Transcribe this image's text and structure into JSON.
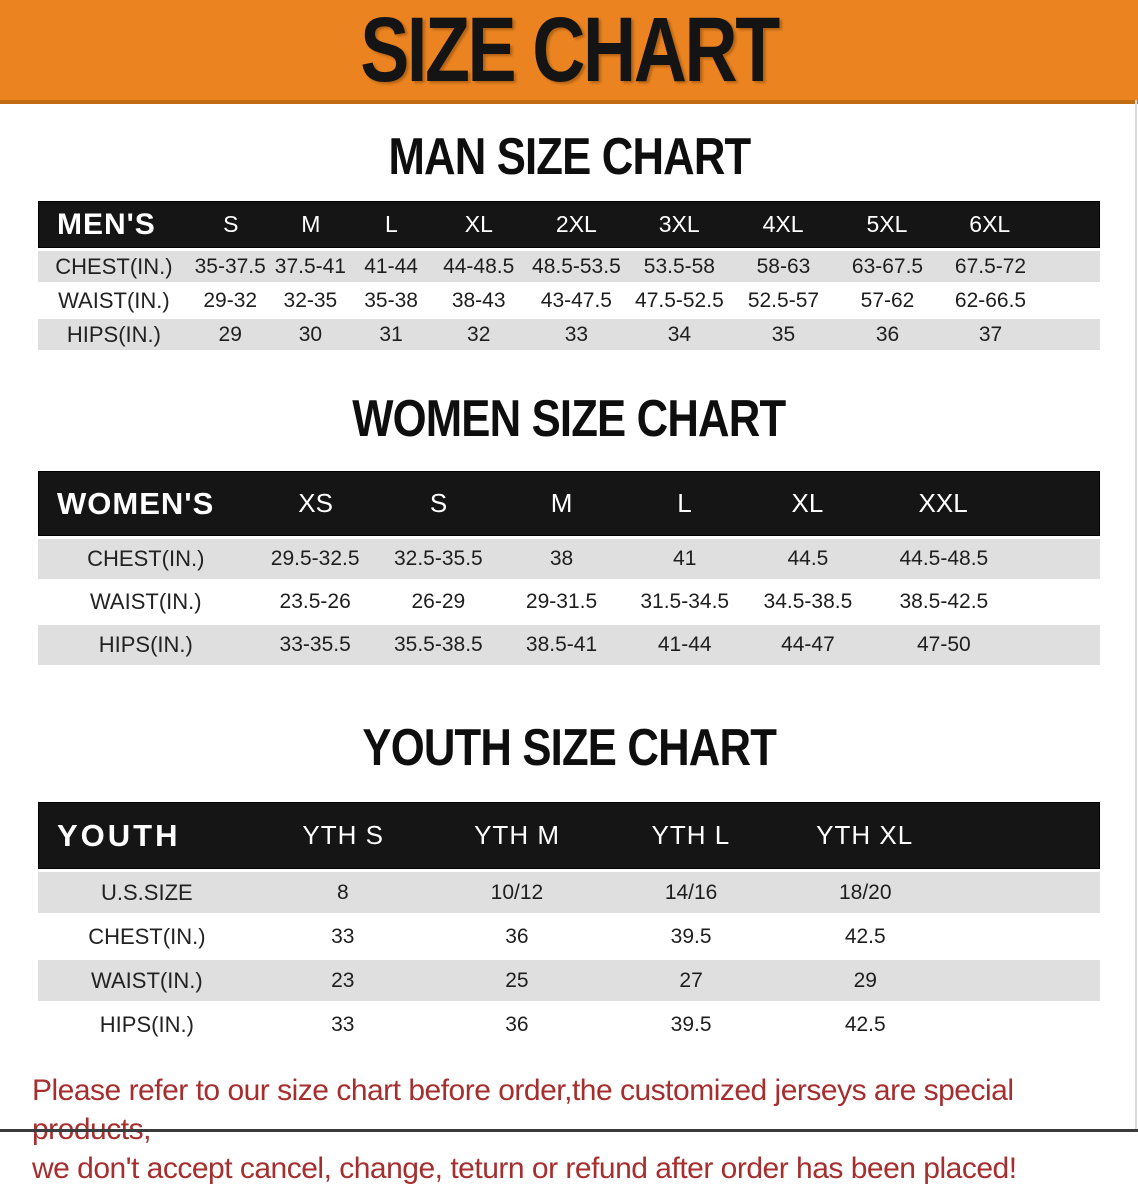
{
  "banner": {
    "title": "SIZE CHART"
  },
  "colors": {
    "banner_orange": "#EB8420",
    "table_header_black": "#151515",
    "row_gray": "#DFDFDF",
    "disclaimer_red": "#A62E2E"
  },
  "sections": {
    "men": {
      "heading": "MAN SIZE CHART",
      "table": {
        "header_label": "MEN'S",
        "columns": [
          "S",
          "M",
          "L",
          "XL",
          "2XL",
          "3XL",
          "4XL",
          "5XL",
          "6XL"
        ],
        "rows": [
          {
            "label": "CHEST(IN.)",
            "values": [
              "35-37.5",
              "37.5-41",
              "41-44",
              "44-48.5",
              "48.5-53.5",
              "53.5-58",
              "58-63",
              "63-67.5",
              "67.5-72"
            ]
          },
          {
            "label": "WAIST(IN.)",
            "values": [
              "29-32",
              "32-35",
              "35-38",
              "38-43",
              "43-47.5",
              "47.5-52.5",
              "52.5-57",
              "57-62",
              "62-66.5"
            ]
          },
          {
            "label": "HIPS(IN.)",
            "values": [
              "29",
              "30",
              "31",
              "32",
              "33",
              "34",
              "35",
              "36",
              "37"
            ]
          }
        ]
      }
    },
    "women": {
      "heading": "WOMEN SIZE CHART",
      "table": {
        "header_label": "WOMEN'S",
        "columns": [
          "XS",
          "S",
          "M",
          "L",
          "XL",
          "XXL"
        ],
        "rows": [
          {
            "label": "CHEST(IN.)",
            "values": [
              "29.5-32.5",
              "32.5-35.5",
              "38",
              "41",
              "44.5",
              "44.5-48.5"
            ]
          },
          {
            "label": "WAIST(IN.)",
            "values": [
              "23.5-26",
              "26-29",
              "29-31.5",
              "31.5-34.5",
              "34.5-38.5",
              "38.5-42.5"
            ]
          },
          {
            "label": "HIPS(IN.)",
            "values": [
              "33-35.5",
              "35.5-38.5",
              "38.5-41",
              "41-44",
              "44-47",
              "47-50"
            ]
          }
        ]
      }
    },
    "youth": {
      "heading": "YOUTH SIZE CHART",
      "table": {
        "header_label": "YOUTH",
        "columns": [
          "YTH S",
          "YTH M",
          "YTH L",
          "YTH XL"
        ],
        "rows": [
          {
            "label": "U.S.SIZE",
            "values": [
              "8",
              "10/12",
              "14/16",
              "18/20"
            ]
          },
          {
            "label": "CHEST(IN.)",
            "values": [
              "33",
              "36",
              "39.5",
              "42.5"
            ]
          },
          {
            "label": "WAIST(IN.)",
            "values": [
              "23",
              "25",
              "27",
              "29"
            ]
          },
          {
            "label": "HIPS(IN.)",
            "values": [
              "33",
              "36",
              "39.5",
              "42.5"
            ]
          }
        ]
      }
    }
  },
  "disclaimer": {
    "line1": "Please refer to our size chart before order,the customized jerseys are special products,",
    "line2": "we don't accept cancel, change, teturn or refund after order has been placed!"
  }
}
